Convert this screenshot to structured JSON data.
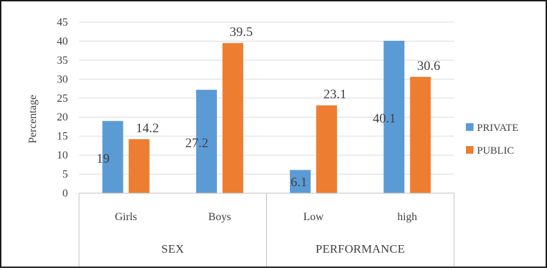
{
  "chart_data": {
    "type": "bar",
    "title": "",
    "ylabel": "Percentage",
    "ylim": [
      0,
      45
    ],
    "yticks": [
      0,
      5,
      10,
      15,
      20,
      25,
      30,
      35,
      40,
      45
    ],
    "grid": true,
    "legend_position": "right",
    "categories": [
      "Girls",
      "Boys",
      "Low",
      "high"
    ],
    "groups": [
      {
        "label": "SEX",
        "categories": [
          "Girls",
          "Boys"
        ]
      },
      {
        "label": "PERFORMANCE",
        "categories": [
          "Low",
          "high"
        ]
      }
    ],
    "series": [
      {
        "name": "PRIVATE",
        "color": "#5b9bd5",
        "values": [
          19,
          27.2,
          6.1,
          40.1
        ],
        "labels": [
          "19",
          "27.2",
          "6.1",
          "40.1"
        ],
        "label_position": "inside"
      },
      {
        "name": "PUBLIC",
        "color": "#ed7d31",
        "values": [
          14.2,
          39.5,
          23.1,
          30.6
        ],
        "labels": [
          "14.2",
          "39.5",
          "23.1",
          "30.6"
        ],
        "label_position": "above"
      }
    ]
  }
}
